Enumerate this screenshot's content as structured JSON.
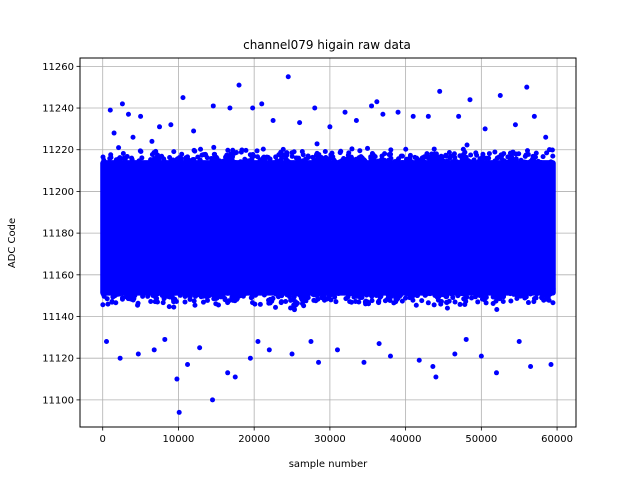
{
  "chart_data": {
    "type": "scatter",
    "title": "channel079 higain raw data",
    "xlabel": "sample number",
    "ylabel": "ADC Code",
    "xlim": [
      -3000,
      62500
    ],
    "ylim": [
      11087,
      11264
    ],
    "xticks": [
      0,
      10000,
      20000,
      30000,
      40000,
      50000,
      60000
    ],
    "yticks": [
      11100,
      11120,
      11140,
      11160,
      11180,
      11200,
      11220,
      11240,
      11260
    ],
    "grid": true,
    "marker_color": "#0000ff",
    "dense_band": {
      "x_range": [
        0,
        59500
      ],
      "y_range": [
        11150,
        11215
      ]
    },
    "points": [
      [
        1000,
        11239
      ],
      [
        2600,
        11242
      ],
      [
        3400,
        11237
      ],
      [
        5000,
        11236
      ],
      [
        7500,
        11231
      ],
      [
        10600,
        11245
      ],
      [
        14600,
        11241
      ],
      [
        16800,
        11240
      ],
      [
        18000,
        11251
      ],
      [
        19800,
        11240
      ],
      [
        21000,
        11242
      ],
      [
        24500,
        11255
      ],
      [
        28000,
        11240
      ],
      [
        32000,
        11238
      ],
      [
        35500,
        11241
      ],
      [
        36200,
        11243
      ],
      [
        39000,
        11238
      ],
      [
        41000,
        11236
      ],
      [
        44500,
        11248
      ],
      [
        47000,
        11236
      ],
      [
        48500,
        11244
      ],
      [
        52500,
        11246
      ],
      [
        56000,
        11250
      ],
      [
        57000,
        11236
      ],
      [
        1500,
        11228
      ],
      [
        4000,
        11226
      ],
      [
        6500,
        11224
      ],
      [
        9000,
        11232
      ],
      [
        12000,
        11229
      ],
      [
        22500,
        11234
      ],
      [
        26000,
        11233
      ],
      [
        30000,
        11231
      ],
      [
        33500,
        11234
      ],
      [
        37000,
        11237
      ],
      [
        43000,
        11236
      ],
      [
        50500,
        11230
      ],
      [
        54500,
        11232
      ],
      [
        58500,
        11226
      ],
      [
        500,
        11128
      ],
      [
        2300,
        11120
      ],
      [
        4700,
        11122
      ],
      [
        6800,
        11124
      ],
      [
        9800,
        11110
      ],
      [
        10100,
        11094
      ],
      [
        11200,
        11117
      ],
      [
        12800,
        11125
      ],
      [
        14500,
        11100
      ],
      [
        16500,
        11113
      ],
      [
        17500,
        11111
      ],
      [
        19500,
        11120
      ],
      [
        22000,
        11124
      ],
      [
        25000,
        11122
      ],
      [
        28500,
        11118
      ],
      [
        31000,
        11124
      ],
      [
        34500,
        11118
      ],
      [
        38000,
        11121
      ],
      [
        41800,
        11119
      ],
      [
        43600,
        11116
      ],
      [
        44000,
        11111
      ],
      [
        46500,
        11122
      ],
      [
        50000,
        11121
      ],
      [
        52000,
        11113
      ],
      [
        56500,
        11116
      ],
      [
        59200,
        11117
      ],
      [
        55000,
        11128
      ],
      [
        48000,
        11129
      ],
      [
        36500,
        11127
      ],
      [
        27500,
        11128
      ],
      [
        8200,
        11129
      ],
      [
        20500,
        11128
      ]
    ]
  }
}
